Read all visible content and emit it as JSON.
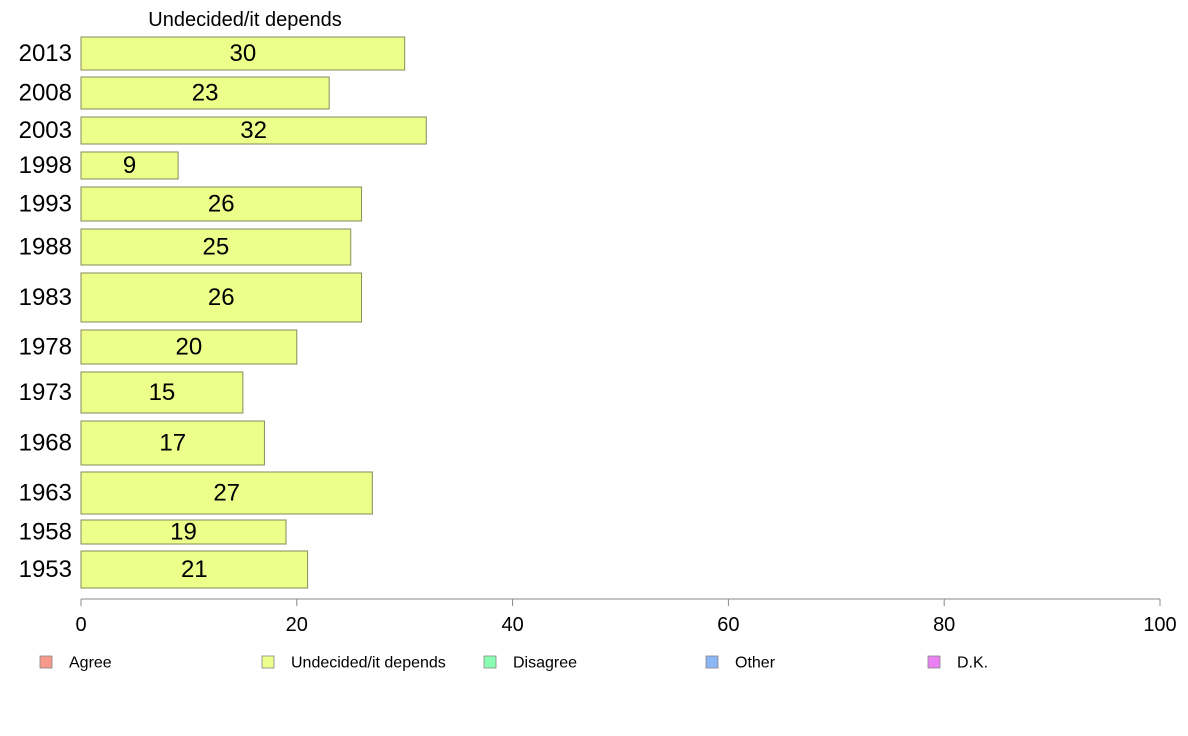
{
  "chart_data": {
    "type": "bar",
    "orientation": "horizontal",
    "title": "Undecided/it depends",
    "categories": [
      "2013",
      "2008",
      "2003",
      "1998",
      "1993",
      "1988",
      "1983",
      "1978",
      "1973",
      "1968",
      "1963",
      "1958",
      "1953"
    ],
    "series": [
      {
        "name": "Undecided/it depends",
        "values": [
          30,
          23,
          32,
          9,
          26,
          25,
          26,
          20,
          15,
          17,
          27,
          19,
          21
        ]
      }
    ],
    "xlim": [
      0,
      100
    ],
    "xticks": [
      0,
      20,
      40,
      60,
      80,
      100
    ],
    "grid": false,
    "bar_color": "#ecff8a",
    "legend": {
      "placement": "bottom",
      "items": [
        {
          "label": "Agree",
          "color": "#f79a8a"
        },
        {
          "label": "Undecided/it depends",
          "color": "#ecff8a"
        },
        {
          "label": "Disagree",
          "color": "#8affb4"
        },
        {
          "label": "Other",
          "color": "#8ab8f7"
        },
        {
          "label": "D.K.",
          "color": "#ea80f2"
        }
      ]
    }
  }
}
